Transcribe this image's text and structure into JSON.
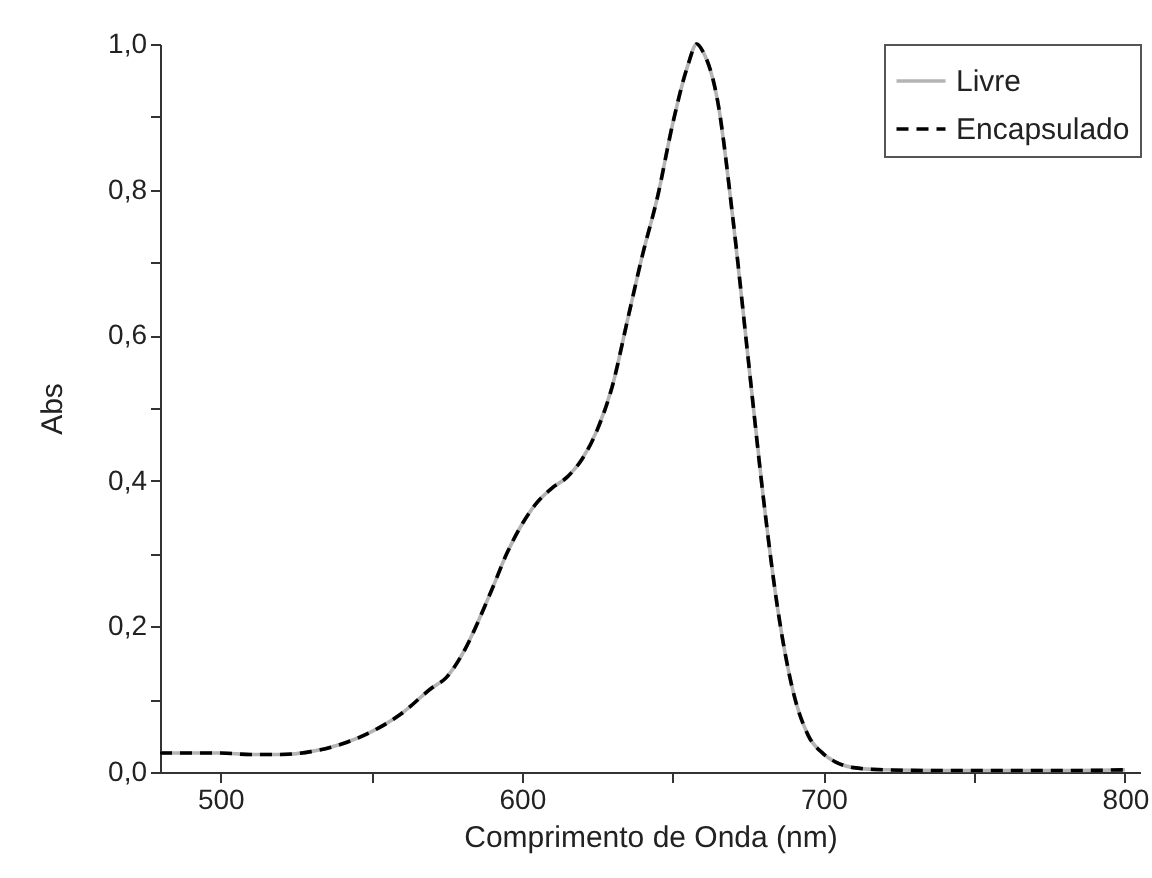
{
  "chart_data": {
    "type": "line",
    "xlabel": "Comprimento de Onda (nm)",
    "ylabel": "Abs",
    "x": [
      480,
      500,
      510,
      520,
      530,
      540,
      550,
      560,
      570,
      575,
      580,
      590,
      595,
      600,
      605,
      610,
      615,
      620,
      625,
      630,
      635,
      640,
      645,
      650,
      655,
      658,
      660,
      665,
      670,
      675,
      680,
      685,
      690,
      695,
      700,
      705,
      710,
      720,
      740,
      760,
      780,
      800
    ],
    "series": [
      {
        "name": "Livre",
        "color": "#b4b4b4",
        "line_style": "solid",
        "values": [
          0.026,
          0.026,
          0.024,
          0.024,
          0.028,
          0.038,
          0.055,
          0.08,
          0.115,
          0.13,
          0.16,
          0.25,
          0.3,
          0.34,
          0.37,
          0.39,
          0.405,
          0.43,
          0.47,
          0.53,
          0.62,
          0.71,
          0.79,
          0.89,
          0.97,
          1.0,
          0.99,
          0.92,
          0.76,
          0.57,
          0.38,
          0.22,
          0.11,
          0.05,
          0.025,
          0.012,
          0.006,
          0.003,
          0.002,
          0.002,
          0.002,
          0.003
        ]
      },
      {
        "name": "Encapsulado",
        "color": "#000000",
        "line_style": "dashed",
        "values": [
          0.026,
          0.026,
          0.024,
          0.024,
          0.028,
          0.038,
          0.055,
          0.08,
          0.115,
          0.13,
          0.16,
          0.25,
          0.3,
          0.34,
          0.37,
          0.39,
          0.405,
          0.43,
          0.47,
          0.53,
          0.62,
          0.71,
          0.79,
          0.89,
          0.97,
          1.0,
          0.99,
          0.92,
          0.76,
          0.57,
          0.38,
          0.22,
          0.11,
          0.05,
          0.025,
          0.012,
          0.006,
          0.003,
          0.002,
          0.002,
          0.002,
          0.003
        ]
      }
    ],
    "xlim": [
      480,
      805
    ],
    "xticks": [
      500,
      {
        "value": 550,
        "label": null
      },
      600,
      {
        "value": 650,
        "label": null
      },
      700,
      {
        "value": 750,
        "label": null
      },
      800
    ],
    "ylim": [
      0,
      1.0
    ],
    "yticks": [
      {
        "value": 0,
        "label": "0,0"
      },
      {
        "value": 0.1,
        "label": null
      },
      {
        "value": 0.2,
        "label": "0,2"
      },
      {
        "value": 0.3,
        "label": null
      },
      {
        "value": 0.4,
        "label": "0,4"
      },
      {
        "value": 0.5,
        "label": null
      },
      {
        "value": 0.6,
        "label": "0,6"
      },
      {
        "value": 0.7,
        "label": null
      },
      {
        "value": 0.8,
        "label": "0,8"
      },
      {
        "value": 0.9,
        "label": null
      },
      {
        "value": 1.0,
        "label": "1,0"
      }
    ],
    "grid": false,
    "legend": "top right"
  }
}
